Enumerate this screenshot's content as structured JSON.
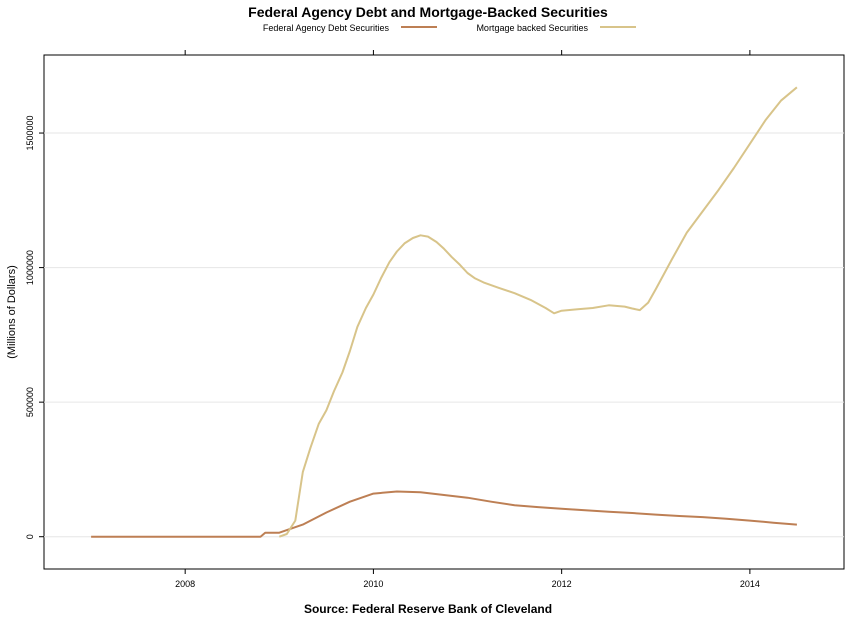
{
  "chart_data": {
    "type": "line",
    "title": "Federal Agency Debt and Mortgage-Backed Securities",
    "xlabel": "Source: Federal Reserve Bank of Cleveland",
    "ylabel": "(Millions of Dollars)",
    "xlim": [
      2006.5,
      2015.0
    ],
    "ylim": [
      -120000,
      1790000
    ],
    "x_ticks": [
      2008,
      2010,
      2012,
      2014
    ],
    "y_ticks": [
      0,
      500000,
      1000000,
      1500000
    ],
    "x_tick_labels": [
      "2008",
      "2010",
      "2012",
      "2014"
    ],
    "y_tick_labels": [
      "0",
      "500000",
      "1000000",
      "1500000"
    ],
    "grid": "horizontal",
    "legend_position": "top",
    "series": [
      {
        "name": "Federal Agency Debt Securities",
        "color": "#bd7f54",
        "x": [
          2007.0,
          2007.5,
          2008.0,
          2008.5,
          2008.8,
          2008.85,
          2009.0,
          2009.25,
          2009.5,
          2009.75,
          2010.0,
          2010.25,
          2010.5,
          2010.75,
          2011.0,
          2011.25,
          2011.5,
          2011.75,
          2012.0,
          2012.25,
          2012.5,
          2012.75,
          2013.0,
          2013.25,
          2013.5,
          2013.75,
          2014.0,
          2014.25,
          2014.5
        ],
        "y": [
          0,
          0,
          0,
          0,
          0,
          15000,
          15000,
          45000,
          90000,
          130000,
          160000,
          168000,
          165000,
          155000,
          145000,
          130000,
          117000,
          110000,
          104000,
          98000,
          93000,
          88000,
          82000,
          77000,
          73000,
          67000,
          60000,
          52000,
          45000
        ]
      },
      {
        "name": "Mortgage backed Securities",
        "color": "#d8c48a",
        "x": [
          2009.0,
          2009.08,
          2009.17,
          2009.25,
          2009.33,
          2009.42,
          2009.5,
          2009.58,
          2009.67,
          2009.75,
          2009.83,
          2009.92,
          2010.0,
          2010.08,
          2010.17,
          2010.25,
          2010.33,
          2010.42,
          2010.5,
          2010.58,
          2010.67,
          2010.75,
          2010.83,
          2010.92,
          2011.0,
          2011.08,
          2011.17,
          2011.33,
          2011.5,
          2011.67,
          2011.83,
          2011.92,
          2012.0,
          2012.17,
          2012.33,
          2012.5,
          2012.67,
          2012.75,
          2012.83,
          2012.92,
          2013.0,
          2013.17,
          2013.33,
          2013.5,
          2013.67,
          2013.83,
          2014.0,
          2014.17,
          2014.33,
          2014.5
        ],
        "y": [
          0,
          10000,
          60000,
          240000,
          330000,
          420000,
          470000,
          540000,
          610000,
          690000,
          780000,
          850000,
          900000,
          960000,
          1020000,
          1060000,
          1090000,
          1110000,
          1120000,
          1115000,
          1095000,
          1070000,
          1040000,
          1010000,
          980000,
          960000,
          945000,
          925000,
          905000,
          880000,
          850000,
          830000,
          840000,
          845000,
          850000,
          860000,
          855000,
          848000,
          842000,
          870000,
          920000,
          1030000,
          1130000,
          1210000,
          1290000,
          1370000,
          1460000,
          1550000,
          1620000,
          1670000
        ]
      }
    ]
  }
}
